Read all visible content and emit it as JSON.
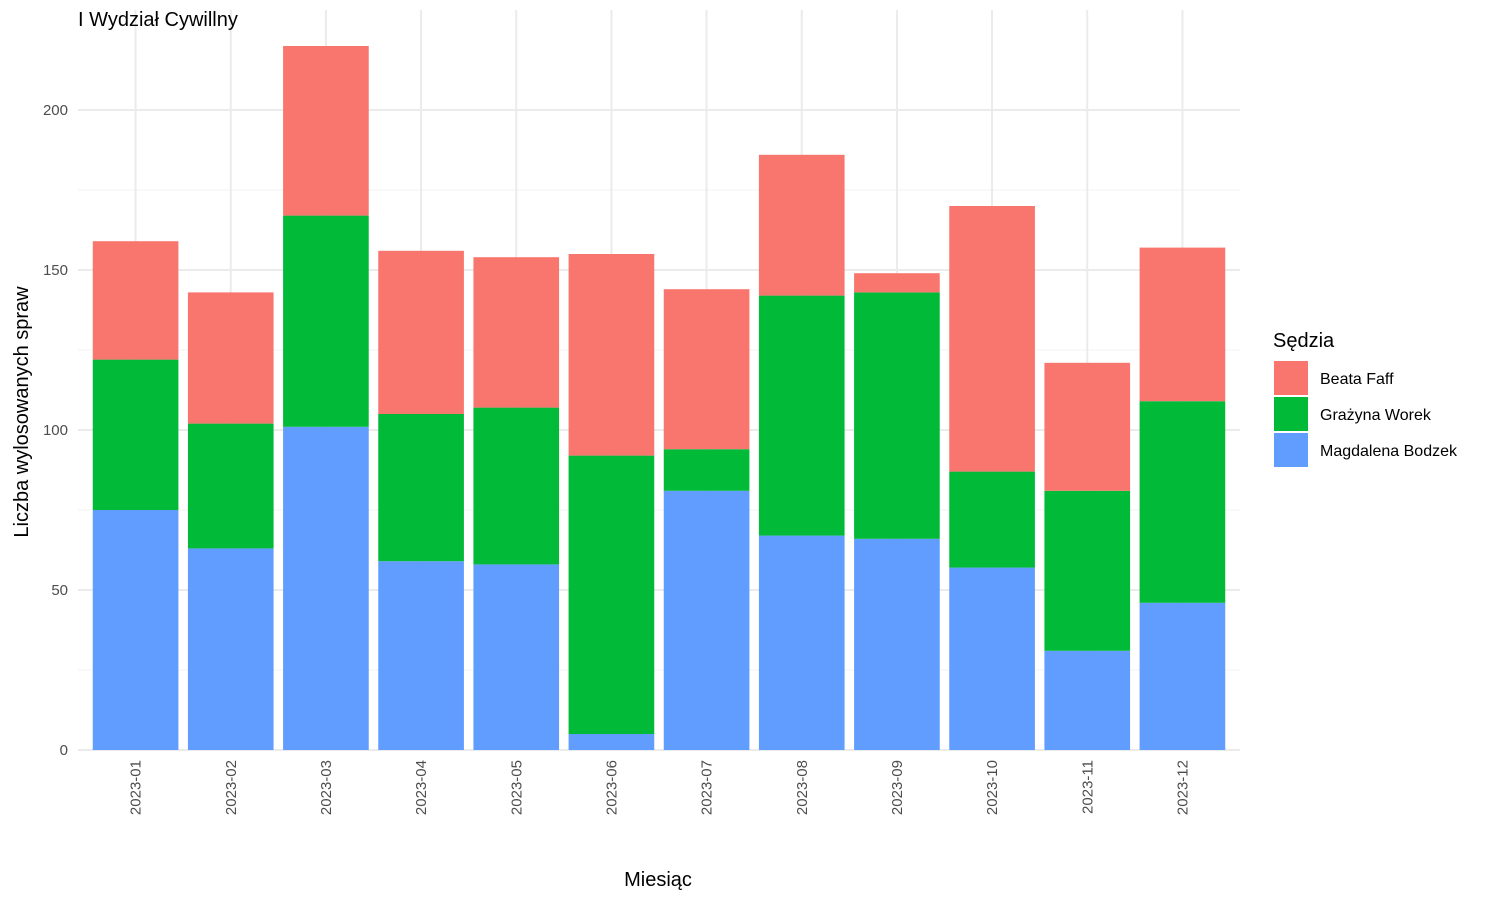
{
  "chart_data": {
    "type": "bar",
    "stacked": true,
    "title": "I Wydział Cywillny",
    "xlabel": "Miesiąc",
    "ylabel": "Liczba wylosowanych spraw",
    "ylim": [
      0,
      220
    ],
    "yticks": [
      0,
      50,
      100,
      150,
      200
    ],
    "grid": true,
    "legend": {
      "title": "Sędzia",
      "position": "right"
    },
    "categories": [
      "2023-01",
      "2023-02",
      "2023-03",
      "2023-04",
      "2023-05",
      "2023-06",
      "2023-07",
      "2023-08",
      "2023-09",
      "2023-10",
      "2023-11",
      "2023-12"
    ],
    "series": [
      {
        "name": "Magdalena Bodzek",
        "color": "#619CFF",
        "values": [
          75,
          63,
          101,
          59,
          58,
          5,
          81,
          67,
          66,
          57,
          31,
          46
        ]
      },
      {
        "name": "Grażyna Worek",
        "color": "#00BA38",
        "values": [
          47,
          39,
          66,
          46,
          49,
          87,
          13,
          75,
          77,
          30,
          50,
          63
        ]
      },
      {
        "name": "Beata Faff",
        "color": "#F8766D",
        "values": [
          37,
          41,
          53,
          51,
          47,
          63,
          50,
          44,
          6,
          83,
          40,
          48
        ]
      }
    ],
    "legend_order": [
      "Beata Faff",
      "Grażyna Worek",
      "Magdalena Bodzek"
    ]
  }
}
